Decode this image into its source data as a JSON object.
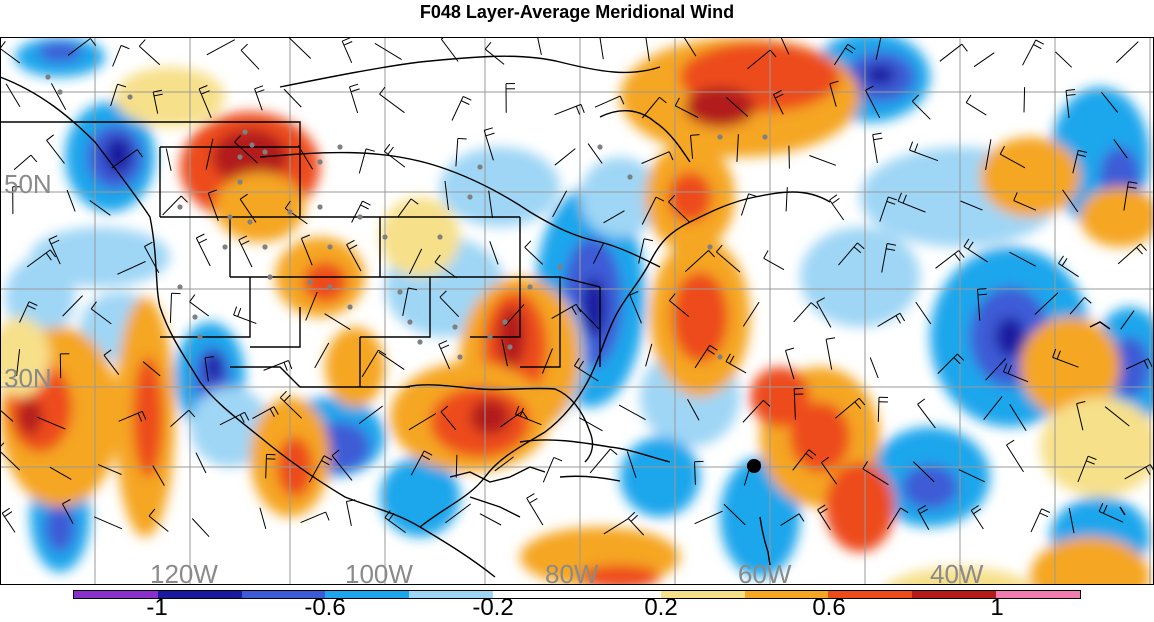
{
  "title": "F048 Layer-Average Meridional Wind",
  "map": {
    "lat_labels": [
      "50N",
      "30N"
    ],
    "lon_labels": [
      "120W",
      "100W",
      "80W",
      "60W",
      "40W"
    ],
    "label_color": "#8a8a8a",
    "grid_color": "#9a9a9a",
    "coast_color": "#000000",
    "barb_color": "#000000",
    "station_color": "#808080"
  },
  "colorbar": {
    "colors": [
      "#8a2fc9",
      "#1a1aa0",
      "#3d5bd6",
      "#1ea6ec",
      "#9fd6f5",
      "#ffffff",
      "#ffffff",
      "#f7e08a",
      "#f5a623",
      "#ed4b1c",
      "#b31b1b",
      "#f07db0"
    ],
    "tick_labels": [
      "-1",
      "-0.6",
      "-0.2",
      "0.2",
      "0.6",
      "1"
    ]
  },
  "legend_levels": [
    -1.2,
    -1.0,
    -0.8,
    -0.6,
    -0.4,
    -0.2,
    0.0,
    0.2,
    0.4,
    0.6,
    0.8,
    1.0,
    1.2
  ]
}
